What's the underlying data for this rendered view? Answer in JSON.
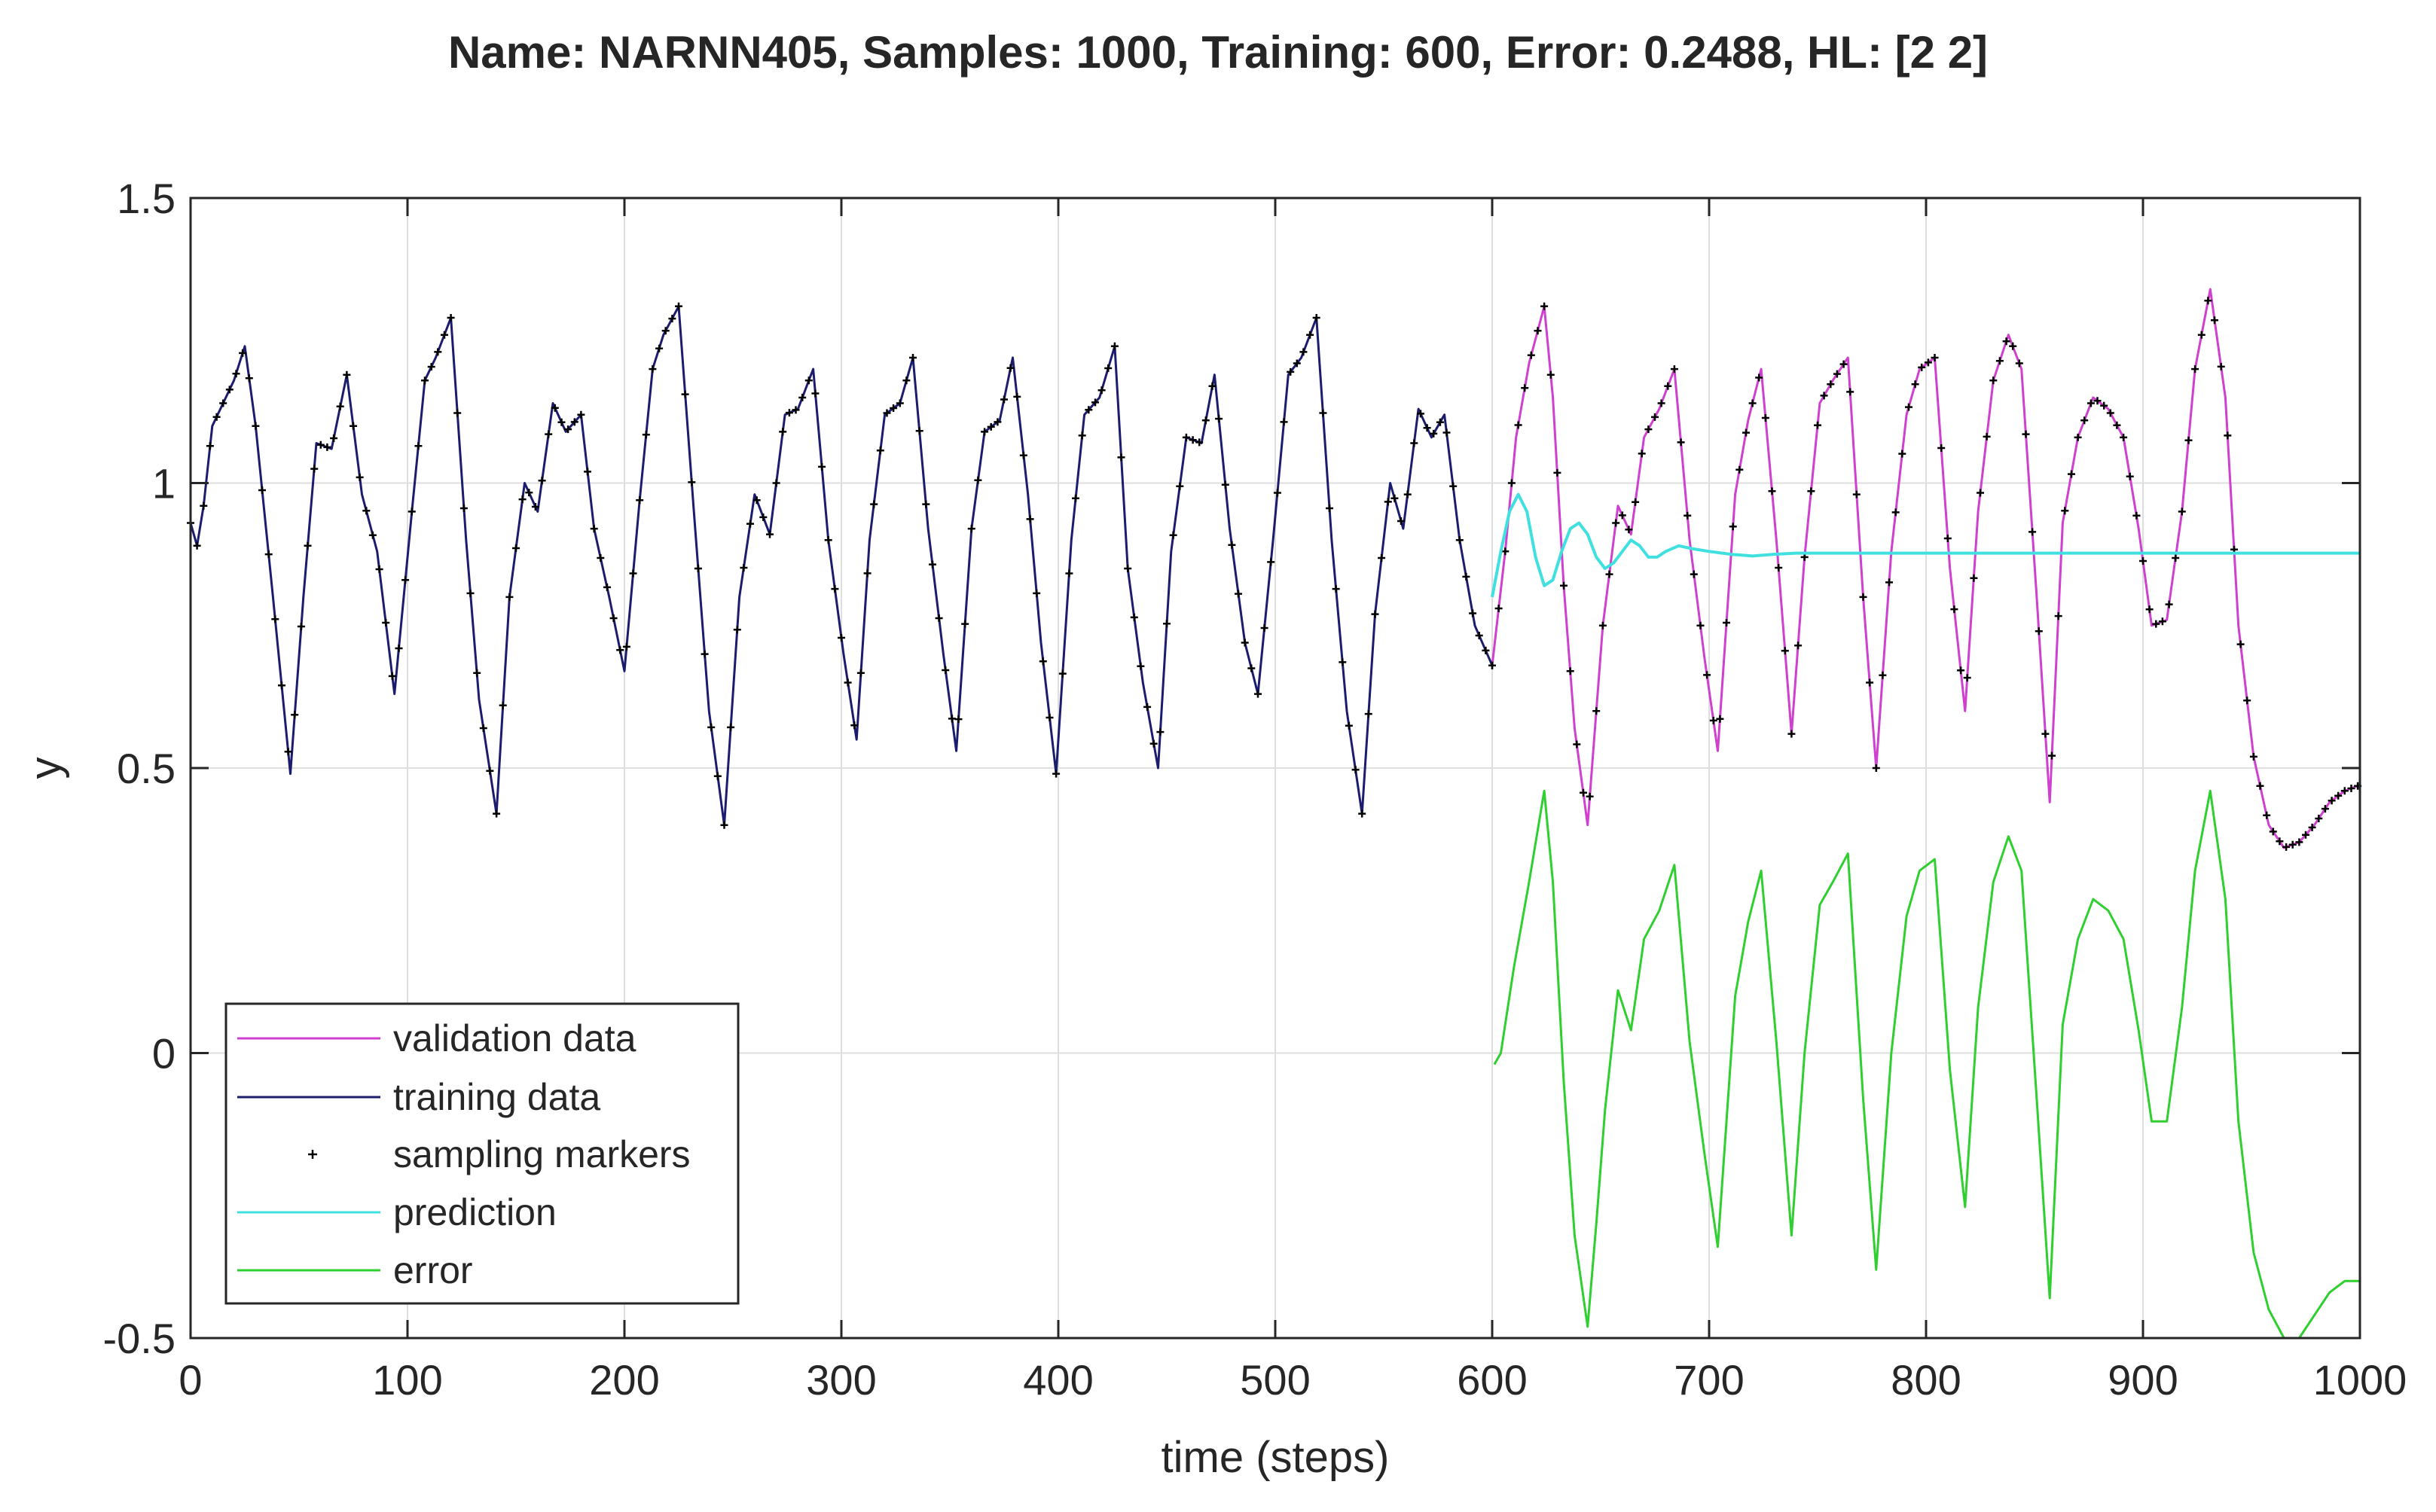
{
  "chart_data": {
    "type": "line",
    "title": "Name: NARNN405, Samples: 1000, Training: 600, Error: 0.2488, HL: [2 2]",
    "xlabel": "time (steps)",
    "ylabel": "y",
    "xlim": [
      0,
      1000
    ],
    "ylim": [
      -0.5,
      1.5
    ],
    "grid": true,
    "x_ticks": [
      0,
      100,
      200,
      300,
      400,
      500,
      600,
      700,
      800,
      900,
      1000
    ],
    "x_tick_labels": [
      "0",
      "100",
      "200",
      "300",
      "400",
      "500",
      "600",
      "700",
      "800",
      "900",
      "1000"
    ],
    "y_ticks": [
      -0.5,
      0,
      0.5,
      1,
      1.5
    ],
    "y_tick_labels": [
      "-0.5",
      "0",
      "0.5",
      "1",
      "1.5"
    ],
    "legend_position": "bottom-left",
    "series": [
      {
        "name": "validation data",
        "kind": "line",
        "color": "#d040d0",
        "x": [
          600,
          606,
          611,
          617,
          624,
          628,
          633,
          638,
          644,
          651,
          658,
          664,
          670,
          677,
          684,
          691,
          698,
          704,
          712,
          718,
          724,
          731,
          738,
          744,
          751,
          757,
          764,
          771,
          777,
          784,
          791,
          797,
          804,
          811,
          818,
          824,
          831,
          838,
          844,
          851,
          857,
          863,
          870,
          877,
          884,
          891,
          898,
          904,
          911,
          918,
          924,
          931,
          938,
          944,
          951,
          958,
          965,
          972,
          979,
          986,
          993,
          1000
        ],
        "y": [
          0.68,
          0.88,
          1.08,
          1.21,
          1.31,
          1.15,
          0.82,
          0.57,
          0.4,
          0.75,
          0.96,
          0.91,
          1.08,
          1.13,
          1.2,
          0.9,
          0.69,
          0.53,
          0.98,
          1.11,
          1.2,
          0.9,
          0.56,
          0.87,
          1.14,
          1.18,
          1.22,
          0.8,
          0.5,
          0.88,
          1.12,
          1.2,
          1.22,
          0.85,
          0.6,
          0.95,
          1.18,
          1.26,
          1.2,
          0.8,
          0.44,
          0.93,
          1.08,
          1.15,
          1.13,
          1.08,
          0.92,
          0.75,
          0.76,
          0.95,
          1.2,
          1.34,
          1.15,
          0.75,
          0.52,
          0.4,
          0.36,
          0.37,
          0.4,
          0.44,
          0.46,
          0.47
        ]
      },
      {
        "name": "training data",
        "kind": "line",
        "color": "#1c1c6e",
        "x": [
          0,
          3,
          6,
          10,
          15,
          20,
          25,
          30,
          38,
          46,
          52,
          58,
          65,
          72,
          79,
          86,
          94,
          102,
          108,
          113,
          120,
          127,
          133,
          141,
          147,
          154,
          160,
          167,
          173,
          180,
          186,
          193,
          200,
          207,
          213,
          218,
          225,
          232,
          239,
          246,
          253,
          260,
          267,
          274,
          280,
          287,
          294,
          301,
          307,
          313,
          320,
          327,
          333,
          340,
          347,
          353,
          360,
          366,
          373,
          379,
          386,
          392,
          399,
          406,
          412,
          419,
          426,
          432,
          439,
          446,
          452,
          459,
          466,
          472,
          479,
          486,
          492,
          499,
          506,
          512,
          519,
          526,
          533,
          540,
          546,
          553,
          559,
          566,
          572,
          578,
          585,
          592,
          600
        ],
        "y": [
          0.93,
          0.89,
          0.96,
          1.1,
          1.14,
          1.18,
          1.24,
          1.1,
          0.8,
          0.49,
          0.8,
          1.07,
          1.06,
          1.19,
          0.98,
          0.88,
          0.63,
          0.95,
          1.18,
          1.22,
          1.29,
          0.9,
          0.62,
          0.42,
          0.8,
          1.0,
          0.95,
          1.14,
          1.09,
          1.12,
          0.92,
          0.8,
          0.67,
          0.97,
          1.2,
          1.26,
          1.31,
          0.95,
          0.6,
          0.4,
          0.8,
          0.98,
          0.91,
          1.12,
          1.13,
          1.2,
          0.9,
          0.7,
          0.55,
          0.9,
          1.12,
          1.14,
          1.22,
          0.92,
          0.7,
          0.53,
          0.92,
          1.09,
          1.11,
          1.22,
          0.98,
          0.72,
          0.49,
          0.9,
          1.12,
          1.15,
          1.24,
          0.85,
          0.65,
          0.5,
          0.88,
          1.08,
          1.07,
          1.19,
          0.92,
          0.72,
          0.63,
          0.9,
          1.19,
          1.22,
          1.29,
          0.9,
          0.6,
          0.42,
          0.77,
          1.0,
          0.92,
          1.13,
          1.08,
          1.12,
          0.9,
          0.75,
          0.68
        ]
      },
      {
        "name": "sampling markers",
        "kind": "markers",
        "color": "#000000",
        "marker_symbol": "+",
        "marker_step": 3,
        "source_series": [
          "training data",
          "validation data"
        ]
      },
      {
        "name": "prediction",
        "kind": "line",
        "color": "#40e0e0",
        "x": [
          600,
          604,
          608,
          612,
          616,
          620,
          624,
          628,
          632,
          636,
          640,
          644,
          648,
          652,
          656,
          660,
          664,
          668,
          672,
          676,
          680,
          686,
          692,
          700,
          710,
          720,
          730,
          740,
          760,
          780,
          800,
          850,
          900,
          950,
          1000
        ],
        "y": [
          0.8,
          0.88,
          0.95,
          0.98,
          0.95,
          0.87,
          0.82,
          0.83,
          0.88,
          0.92,
          0.93,
          0.91,
          0.87,
          0.85,
          0.86,
          0.88,
          0.9,
          0.89,
          0.87,
          0.87,
          0.88,
          0.89,
          0.885,
          0.88,
          0.875,
          0.872,
          0.875,
          0.877,
          0.877,
          0.877,
          0.877,
          0.877,
          0.877,
          0.877,
          0.877
        ]
      },
      {
        "name": "error",
        "kind": "line",
        "color": "#2fcf2f",
        "x": [
          601,
          604,
          610,
          617,
          624,
          628,
          633,
          638,
          644,
          648,
          652,
          658,
          664,
          670,
          677,
          684,
          691,
          698,
          704,
          712,
          718,
          724,
          731,
          738,
          744,
          751,
          757,
          764,
          771,
          777,
          784,
          791,
          797,
          804,
          811,
          818,
          824,
          831,
          838,
          844,
          851,
          857,
          863,
          870,
          877,
          884,
          891,
          898,
          904,
          911,
          918,
          924,
          931,
          938,
          944,
          951,
          958,
          965,
          972,
          979,
          986,
          993,
          1000
        ],
        "y": [
          -0.02,
          0.0,
          0.15,
          0.3,
          0.46,
          0.3,
          -0.05,
          -0.32,
          -0.48,
          -0.3,
          -0.1,
          0.11,
          0.04,
          0.2,
          0.25,
          0.33,
          0.02,
          -0.18,
          -0.34,
          0.1,
          0.23,
          0.32,
          0.02,
          -0.32,
          0.0,
          0.26,
          0.3,
          0.35,
          -0.08,
          -0.38,
          0.0,
          0.24,
          0.32,
          0.34,
          -0.03,
          -0.27,
          0.08,
          0.3,
          0.38,
          0.32,
          -0.08,
          -0.43,
          0.05,
          0.2,
          0.27,
          0.25,
          0.2,
          0.04,
          -0.12,
          -0.12,
          0.08,
          0.32,
          0.46,
          0.27,
          -0.12,
          -0.35,
          -0.45,
          -0.5,
          -0.5,
          -0.46,
          -0.42,
          -0.4,
          -0.4
        ]
      }
    ]
  }
}
